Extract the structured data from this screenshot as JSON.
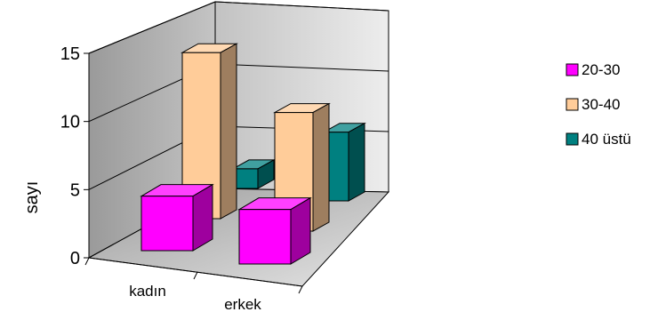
{
  "chart_data": {
    "type": "bar",
    "subtype": "3d-clustered-column",
    "title": "",
    "xlabel": "",
    "ylabel": "sayı",
    "categories": [
      "kadın",
      "erkek"
    ],
    "series": [
      {
        "name": "20-30",
        "values": [
          4,
          4
        ],
        "color": "#ff00ff"
      },
      {
        "name": "30-40",
        "values": [
          14,
          10
        ],
        "color": "#ffcc99"
      },
      {
        "name": "40 üstü",
        "values": [
          2,
          7
        ],
        "color": "#008080"
      }
    ],
    "ylim": [
      0,
      15
    ],
    "yticks": [
      "0",
      "5",
      "10",
      "15"
    ],
    "grid": true,
    "legend_position": "right"
  }
}
